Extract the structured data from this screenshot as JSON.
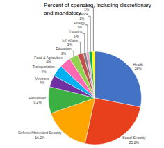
{
  "chart_data": {
    "type": "pie",
    "title": "Percent of spending, including discretionary\nand mandatory",
    "categories": [
      "Health\n28%",
      "Social Security\n25.2%",
      "Defense/Homeland Security\n16.2%",
      "Remainder\n9.2%",
      "Veterans\n4%",
      "Transportation\n4%",
      "Food & Agriculture\n4%",
      "Education\n3%",
      "Int'l Affairs\n2%",
      "Housing\n1%",
      "Energy\n1%",
      "Science\n1%",
      "Labor\n1%"
    ],
    "values": [
      28,
      25.2,
      16.2,
      9.2,
      4,
      4,
      4,
      3,
      2,
      1,
      1,
      1,
      1
    ],
    "colors": [
      "#4472C4",
      "#E8401C",
      "#FFA500",
      "#3CB043",
      "#7030A0",
      "#00B0F0",
      "#FF69B4",
      "#92D050",
      "#C0504D",
      "#808080",
      "#F0A0C0",
      "#00B050",
      "#FFFF00"
    ]
  }
}
